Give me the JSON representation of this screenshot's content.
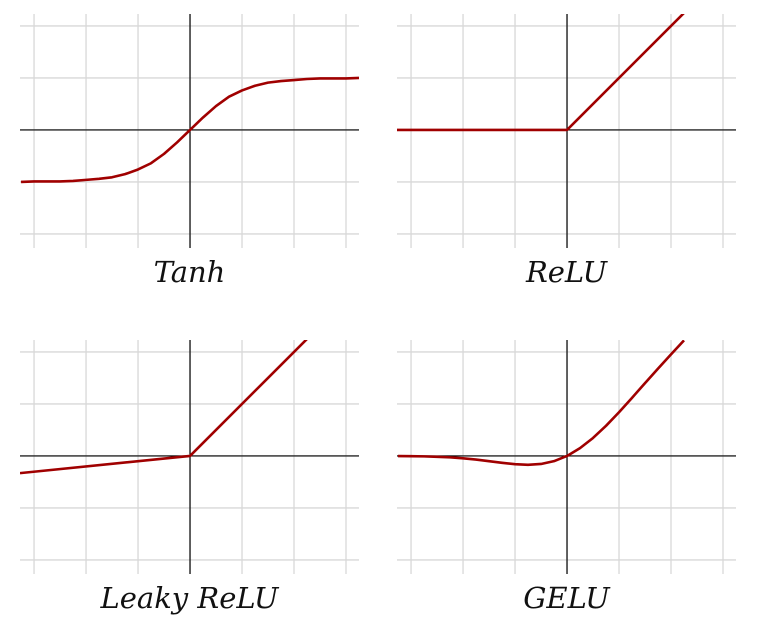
{
  "chart_data": [
    {
      "type": "line",
      "title": "Tanh",
      "color": "#a00000",
      "grid": true,
      "xlim": [
        -3.27,
        3.25
      ],
      "ylim": [
        -2.27,
        2.23
      ],
      "xticks": [
        -3,
        -2,
        -1,
        0,
        1,
        2,
        3
      ],
      "yticks": [
        -2,
        -1,
        0,
        1,
        2
      ],
      "x": [
        -3.25,
        -3,
        -2.75,
        -2.5,
        -2.25,
        -2,
        -1.75,
        -1.5,
        -1.25,
        -1,
        -0.75,
        -0.5,
        -0.25,
        0,
        0.25,
        0.5,
        0.75,
        1,
        1.25,
        1.5,
        1.75,
        2,
        2.25,
        2.5,
        2.75,
        3,
        3.25
      ],
      "values": [
        -1,
        -0.99,
        -0.99,
        -0.99,
        -0.98,
        -0.96,
        -0.94,
        -0.91,
        -0.85,
        -0.76,
        -0.64,
        -0.46,
        -0.24,
        0,
        0.24,
        0.46,
        0.64,
        0.76,
        0.85,
        0.91,
        0.94,
        0.96,
        0.98,
        0.99,
        0.99,
        0.99,
        1
      ]
    },
    {
      "type": "line",
      "title": "ReLU",
      "color": "#a00000",
      "grid": true,
      "xlim": [
        -3.27,
        3.25
      ],
      "ylim": [
        -2.27,
        2.23
      ],
      "xticks": [
        -3,
        -2,
        -1,
        0,
        1,
        2,
        3
      ],
      "yticks": [
        -2,
        -1,
        0,
        1,
        2
      ],
      "x": [
        -3.27,
        0,
        2.25
      ],
      "values": [
        0,
        0,
        2.25
      ]
    },
    {
      "type": "line",
      "title": "Leaky ReLU",
      "color": "#a00000",
      "grid": true,
      "xlim": [
        -3.27,
        3.25
      ],
      "ylim": [
        -2.27,
        2.23
      ],
      "xticks": [
        -3,
        -2,
        -1,
        0,
        1,
        2,
        3
      ],
      "yticks": [
        -2,
        -1,
        0,
        1,
        2
      ],
      "x": [
        -3.27,
        0,
        2.25
      ],
      "values": [
        -0.33,
        0,
        2.25
      ]
    },
    {
      "type": "line",
      "title": "GELU",
      "color": "#a00000",
      "grid": true,
      "xlim": [
        -3.27,
        3.25
      ],
      "ylim": [
        -2.27,
        2.23
      ],
      "xticks": [
        -3,
        -2,
        -1,
        0,
        1,
        2,
        3
      ],
      "yticks": [
        -2,
        -1,
        0,
        1,
        2
      ],
      "x": [
        -3.25,
        -3,
        -2.75,
        -2.5,
        -2.25,
        -2,
        -1.75,
        -1.5,
        -1.25,
        -1,
        -0.75,
        -0.5,
        -0.25,
        0,
        0.25,
        0.5,
        0.75,
        1,
        1.25,
        1.5,
        1.75,
        2,
        2.25
      ],
      "values": [
        -0.002,
        -0.004,
        -0.008,
        -0.016,
        -0.027,
        -0.046,
        -0.07,
        -0.1,
        -0.132,
        -0.159,
        -0.17,
        -0.154,
        -0.1,
        0,
        0.15,
        0.346,
        0.58,
        0.841,
        1.118,
        1.4,
        1.68,
        1.954,
        2.223
      ]
    }
  ]
}
